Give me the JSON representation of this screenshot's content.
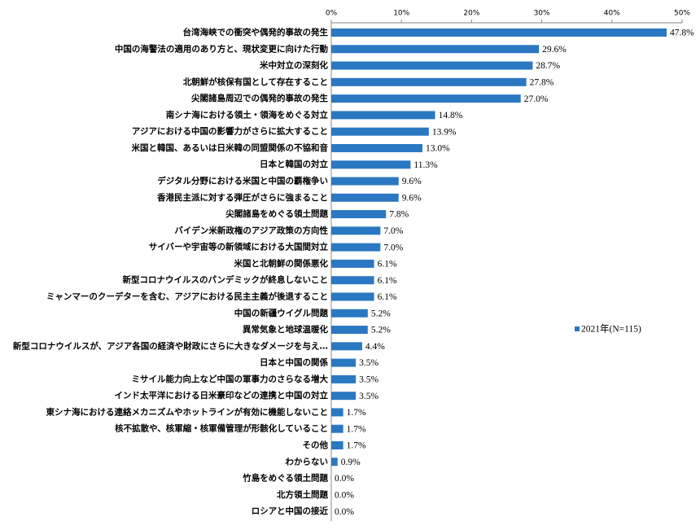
{
  "chart_data": {
    "type": "hbar",
    "categories": [
      "台湾海峡での衝突や偶発的事故の発生",
      "中国の海警法の適用のあり方と、現状変更に向けた行動",
      "米中対立の深刻化",
      "北朝鮮が核保有国として存在すること",
      "尖閣諸島周辺での偶発的事故の発生",
      "南シナ海における領土・領海をめぐる対立",
      "アジアにおける中国の影響力がさらに拡大すること",
      "米国と韓国、あるいは日米韓の同盟関係の不協和音",
      "日本と韓国の対立",
      "デジタル分野における米国と中国の覇権争い",
      "香港民主派に対する弾圧がさらに強まること",
      "尖閣諸島をめぐる領土問題",
      "バイデン米新政権のアジア政策の方向性",
      "サイバーや宇宙等の新領域における大国間対立",
      "米国と北朝鮮の関係悪化",
      "新型コロナウイルスのパンデミックが終息しないこと",
      "ミャンマーのクーデターを含む、アジアにおける民主主義が後退すること",
      "中国の新疆ウイグル問題",
      "異常気象と地球温暖化",
      "新型コロナウイルスが、アジア各国の経済や財政にさらに大きなダメージを与え…",
      "日本と中国の関係",
      "ミサイル能力向上など中国の軍事力のさらなる増大",
      "インド太平洋における日米豪印などの連携と中国の対立",
      "東シナ海における連絡メカニズムやホットラインが有効に機能しないこと",
      "核不拡散や、核軍縮・核軍備管理が形骸化していること",
      "その他",
      "わからない",
      "竹島をめぐる領土問題",
      "北方領土問題",
      "ロシアと中国の接近"
    ],
    "series": [
      {
        "name": "2021年(N=115)",
        "color": "#2a78c2",
        "values": [
          47.8,
          29.6,
          28.7,
          27.8,
          27.0,
          14.8,
          13.9,
          13.0,
          11.3,
          9.6,
          9.6,
          7.8,
          7.0,
          7.0,
          6.1,
          6.1,
          6.1,
          5.2,
          5.2,
          4.4,
          3.5,
          3.5,
          3.5,
          1.7,
          1.7,
          1.7,
          0.9,
          0.0,
          0.0,
          0.0
        ],
        "value_labels": [
          "47.8%",
          "29.6%",
          "28.7%",
          "27.8%",
          "27.0%",
          "14.8%",
          "13.9%",
          "13.0%",
          "11.3%",
          "9.6%",
          "9.6%",
          "7.8%",
          "7.0%",
          "7.0%",
          "6.1%",
          "6.1%",
          "6.1%",
          "5.2%",
          "5.2%",
          "4.4%",
          "3.5%",
          "3.5%",
          "3.5%",
          "1.7%",
          "1.7%",
          "1.7%",
          "0.9%",
          "0.0%",
          "0.0%",
          "0.0%"
        ]
      }
    ],
    "xlim": [
      0,
      50
    ],
    "xticks": [
      {
        "value": 0,
        "label": "0%"
      },
      {
        "value": 10,
        "label": "10%"
      },
      {
        "value": 20,
        "label": "20%"
      },
      {
        "value": 30,
        "label": "30%"
      },
      {
        "value": 40,
        "label": "40%"
      },
      {
        "value": 50,
        "label": "50%"
      }
    ],
    "legend": "right"
  }
}
